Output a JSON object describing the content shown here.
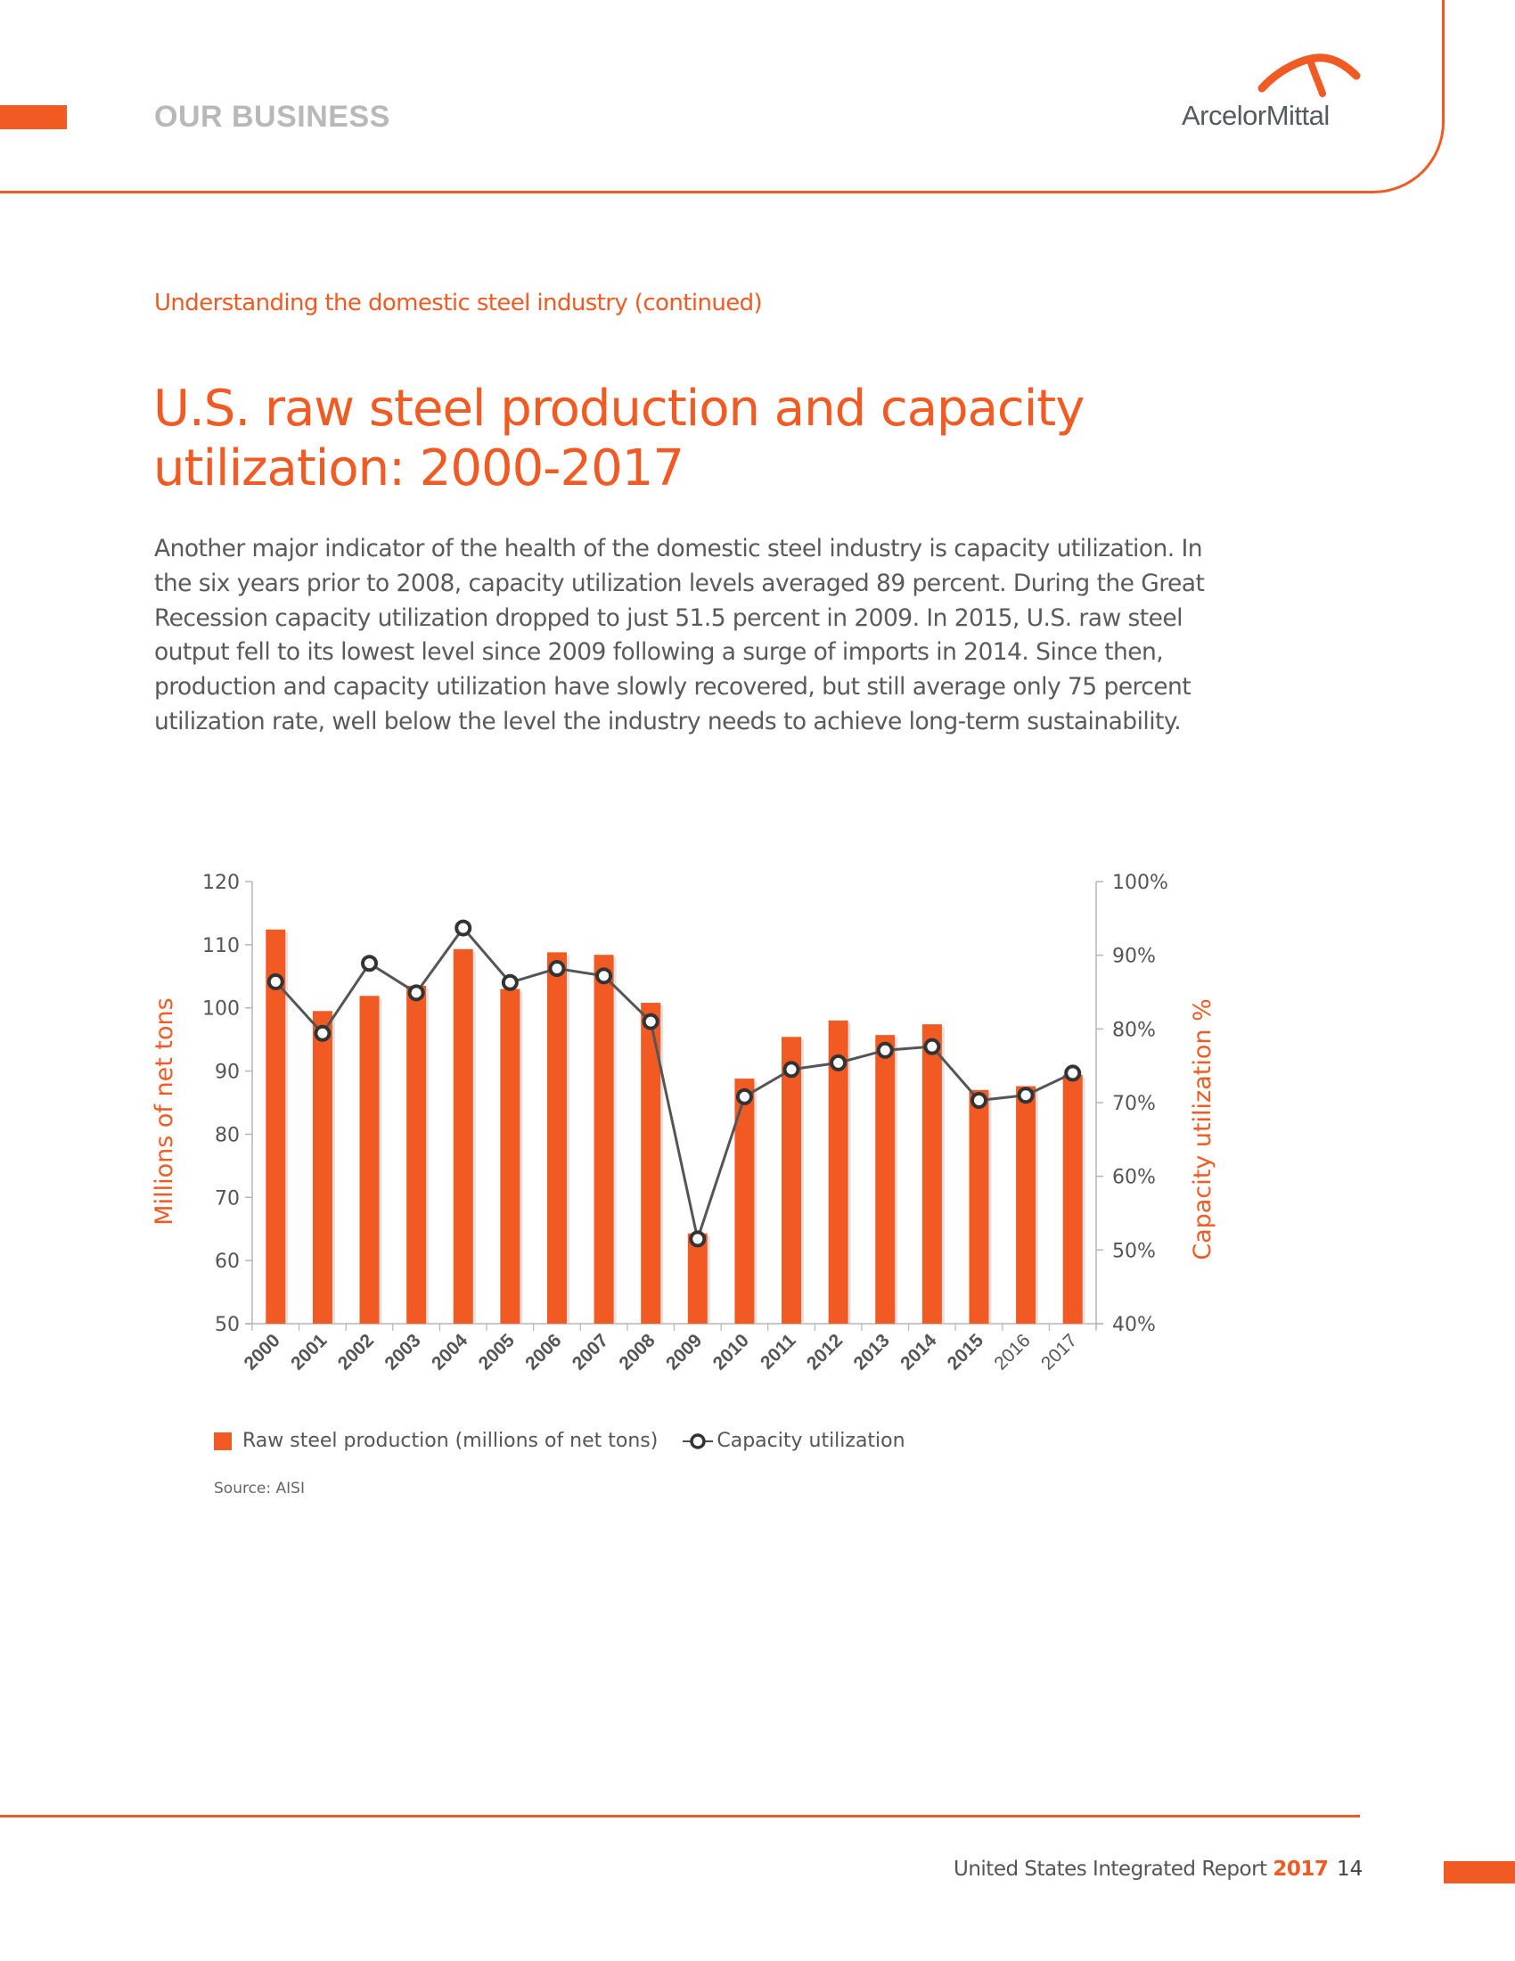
{
  "header": {
    "section_label": "OUR BUSINESS",
    "logo_text": "ArcelorMittal",
    "accent_color": "#f15a22"
  },
  "subtitle": "Understanding the domestic steel industry (continued)",
  "title": "U.S. raw steel production and capacity utilization: 2000-2017",
  "body": "Another major indicator of the health of the domestic steel industry is capacity utilization. In the six years prior to 2008, capacity utilization levels averaged 89 percent. During the Great Recession capacity utilization dropped to just 51.5 percent in 2009. In 2015, U.S. raw steel output fell to its lowest level since 2009 following a surge of imports in 2014. Since then, production and capacity utilization have slowly recovered, but still average only 75 percent utilization rate, well below the level the industry needs to achieve long-term sustainability.",
  "chart_data": {
    "type": "bar",
    "title": "",
    "categories": [
      "2000",
      "2001",
      "2002",
      "2003",
      "2004",
      "2005",
      "2006",
      "2007",
      "2008",
      "2009",
      "2010",
      "2011",
      "2012",
      "2013",
      "2014",
      "2015",
      "2016",
      "2017"
    ],
    "series": [
      {
        "name": "Raw steel production (millions of net tons)",
        "type": "bar",
        "axis": "left",
        "color": "#f15a22",
        "values": [
          112.4,
          99.5,
          101.9,
          103.5,
          109.3,
          103.0,
          108.8,
          108.4,
          100.8,
          64.3,
          88.8,
          95.4,
          98.0,
          95.7,
          97.4,
          87.0,
          87.6,
          89.4
        ]
      },
      {
        "name": "Capacity utilization",
        "type": "line",
        "axis": "right",
        "color": "#4d4d4d",
        "values": [
          86.4,
          79.4,
          88.9,
          84.9,
          93.7,
          86.3,
          88.2,
          87.2,
          81.0,
          51.5,
          70.8,
          74.5,
          75.4,
          77.1,
          77.6,
          70.3,
          71.0,
          74.0
        ]
      }
    ],
    "ylabel": "Millions of net tons",
    "ylim": [
      50,
      120
    ],
    "yticks": [
      "50",
      "60",
      "70",
      "80",
      "90",
      "100",
      "110",
      "120"
    ],
    "y2label": "Capacity utilization %",
    "y2lim": [
      40,
      100
    ],
    "y2ticks": [
      "40%",
      "50%",
      "60%",
      "70%",
      "80%",
      "90%",
      "100%"
    ],
    "xlabel": "",
    "light_labels": [
      "2016",
      "2017"
    ],
    "grid": false,
    "legend_position": "bottom-left"
  },
  "legend": {
    "bar_label": "Raw steel production (millions of net tons)",
    "line_label": "Capacity utilization"
  },
  "source": "Source: AISI",
  "footer": {
    "report_name": "United States Integrated Report",
    "report_year": "2017",
    "page_number": "14"
  }
}
